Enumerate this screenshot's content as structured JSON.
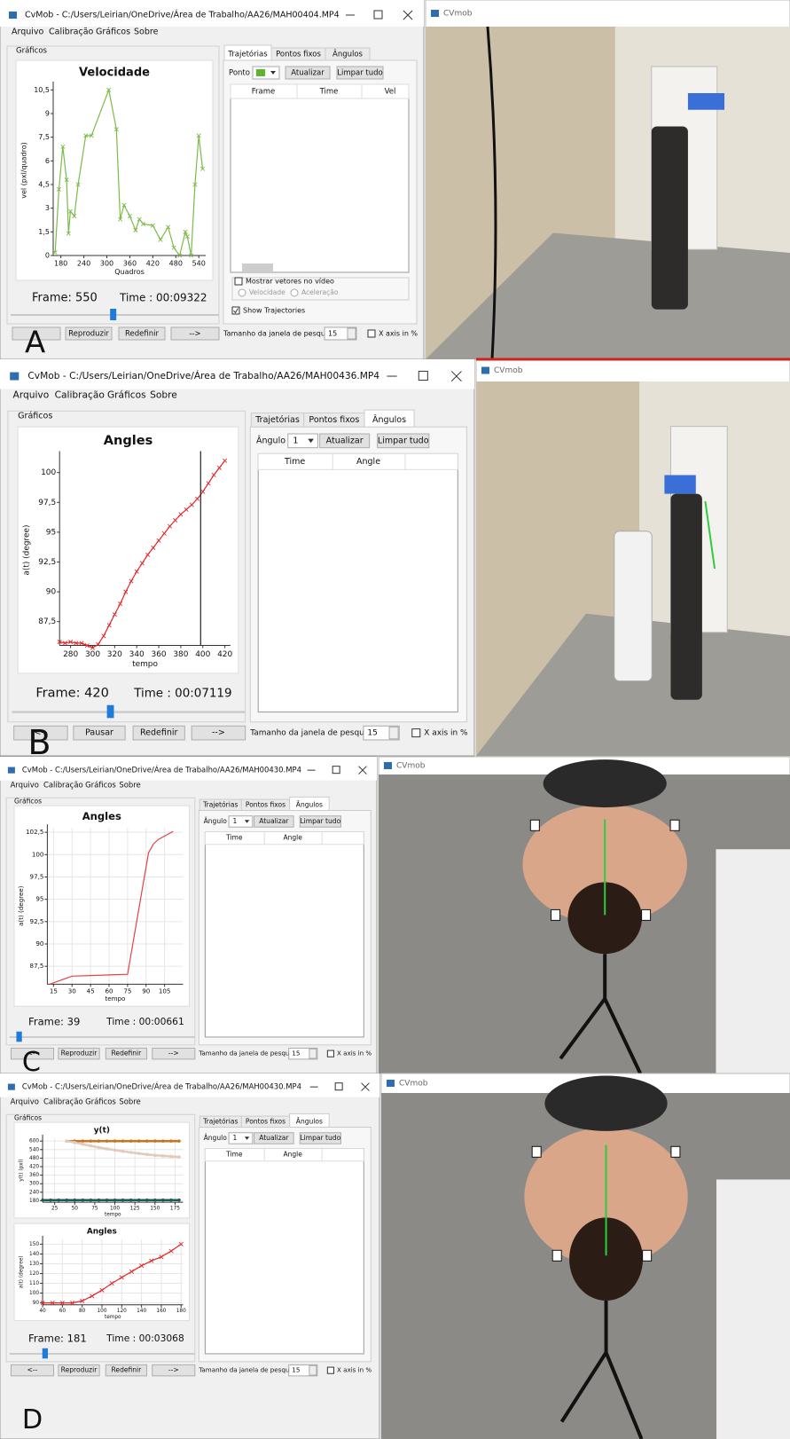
{
  "chart_data": [
    {
      "type": "line",
      "title": "Velocidade",
      "x_label": "Quadros",
      "y_label": "vel (pxl/quadro)",
      "color": "#7cbb4a",
      "marker": "x",
      "grid": false,
      "x": [
        165,
        175,
        185,
        195,
        200,
        205,
        215,
        225,
        245,
        260,
        305,
        325,
        335,
        345,
        360,
        375,
        385,
        395,
        420,
        440,
        460,
        475,
        490,
        505,
        510,
        520,
        530,
        540,
        550
      ],
      "series": [
        {
          "color": "#7cbb4a",
          "values": [
            0.2,
            4.2,
            6.9,
            4.8,
            1.4,
            2.8,
            2.5,
            4.5,
            7.6,
            7.6,
            10.5,
            8,
            2.3,
            3.2,
            2.5,
            1.6,
            2.3,
            2,
            1.9,
            1,
            1.8,
            0.5,
            0,
            1.5,
            1.2,
            0,
            4.5,
            7.6,
            5.5
          ]
        }
      ],
      "xlim": [
        160,
        558
      ],
      "xticks": [
        180,
        240,
        300,
        360,
        420,
        480,
        540
      ],
      "ylim": [
        0,
        10.8
      ],
      "yticks": [
        0,
        {
          "value": 1.5,
          "label": "1,5"
        },
        3,
        {
          "value": 4.5,
          "label": "4,5"
        },
        6,
        {
          "value": 7.5,
          "label": "7,5"
        },
        9,
        {
          "value": 10.5,
          "label": "10,5"
        }
      ]
    },
    {
      "type": "line",
      "title": "Angles",
      "x_label": "tempo",
      "y_label": "a(t) (degree)",
      "marker": "x",
      "grid": false,
      "cursor_x": 398,
      "x": [
        270,
        275,
        280,
        285,
        290,
        295,
        300,
        305,
        310,
        315,
        320,
        325,
        330,
        335,
        340,
        345,
        350,
        355,
        360,
        365,
        370,
        375,
        380,
        385,
        390,
        395,
        400,
        405,
        410,
        415,
        420
      ],
      "series": [
        {
          "color": "#e5262a",
          "values": [
            85.8,
            85.7,
            85.8,
            85.7,
            85.7,
            85.5,
            85.3,
            85.6,
            86.3,
            87.2,
            88.1,
            89.0,
            90.0,
            90.9,
            91.7,
            92.4,
            93.1,
            93.7,
            94.3,
            94.9,
            95.5,
            96.0,
            96.5,
            96.9,
            97.3,
            97.8,
            98.4,
            99.1,
            99.8,
            100.4,
            101.0
          ]
        }
      ],
      "xlim": [
        270,
        425
      ],
      "xticks": [
        280,
        300,
        320,
        340,
        360,
        380,
        400,
        420
      ],
      "ylim": [
        85.5,
        101.5
      ],
      "yticks": [
        {
          "value": 87.5,
          "label": "87,5"
        },
        90,
        {
          "value": 92.5,
          "label": "92,5"
        },
        95,
        {
          "value": 97.5,
          "label": "97,5"
        },
        100
      ]
    },
    {
      "type": "line",
      "title": "Angles",
      "x_label": "tempo",
      "y_label": "a(t) (degree)",
      "marker": "none",
      "grid": true,
      "x": [
        12,
        30,
        75,
        92,
        96,
        100,
        112
      ],
      "series": [
        {
          "color": "#e84040",
          "values": [
            85.5,
            86.4,
            86.6,
            100.2,
            101.2,
            101.7,
            102.6
          ]
        }
      ],
      "xlim": [
        10,
        120
      ],
      "xticks": [
        15,
        30,
        45,
        60,
        75,
        90,
        105
      ],
      "ylim": [
        85.5,
        103
      ],
      "yticks": [
        {
          "value": 87.5,
          "label": "87,5"
        },
        90,
        {
          "value": 92.5,
          "label": "92,5"
        },
        95,
        {
          "value": 97.5,
          "label": "97,5"
        },
        100,
        {
          "value": 102.5,
          "label": "102,5"
        }
      ]
    },
    {
      "type": "line",
      "title": "y(t)",
      "x_label": "tempo",
      "y_label": "y(t) (pxl)",
      "marker": "dot",
      "grid": true,
      "x": [
        10,
        20,
        30,
        40,
        50,
        60,
        70,
        80,
        90,
        100,
        110,
        120,
        130,
        140,
        150,
        160,
        170,
        180
      ],
      "series": [
        {
          "color": "#c8741e",
          "values": [
            null,
            null,
            null,
            600,
            600,
            600,
            600,
            600,
            600,
            600,
            600,
            600,
            600,
            600,
            600,
            600,
            600,
            600
          ]
        },
        {
          "color": "#e3c9b9",
          "values": [
            null,
            null,
            null,
            600,
            590,
            578,
            566,
            555,
            545,
            536,
            528,
            520,
            513,
            506,
            500,
            496,
            492,
            488
          ]
        },
        {
          "color": "#1d5a5a",
          "values": [
            185,
            185,
            185,
            185,
            185,
            185,
            185,
            185,
            185,
            185,
            185,
            185,
            185,
            185,
            185,
            185,
            185,
            185
          ]
        }
      ],
      "xlim": [
        10,
        185
      ],
      "xticks": [
        25,
        50,
        75,
        100,
        125,
        150,
        175
      ],
      "ylim": [
        170,
        620
      ],
      "yticks": [
        180,
        240,
        300,
        360,
        420,
        480,
        540,
        600
      ]
    },
    {
      "type": "line",
      "title": "Angles",
      "x_label": "tempo",
      "y_label": "a(t) (degree)",
      "marker": "x",
      "grid": true,
      "x": [
        40,
        50,
        60,
        70,
        80,
        90,
        100,
        110,
        120,
        130,
        140,
        150,
        160,
        170,
        180
      ],
      "series": [
        {
          "color": "#e5262a",
          "values": [
            90,
            90,
            90,
            90,
            92,
            97,
            103,
            110,
            116,
            122,
            128,
            133,
            137,
            143,
            150
          ]
        }
      ],
      "xlim": [
        40,
        182
      ],
      "xticks": [
        40,
        60,
        80,
        100,
        120,
        140,
        160,
        180
      ],
      "ylim": [
        88,
        155
      ],
      "yticks": [
        90,
        100,
        110,
        120,
        130,
        140,
        150
      ]
    }
  ],
  "panels": [
    {
      "letter": "A",
      "window_title": "CvMob - C:/Users/Leirian/OneDrive/Área de Trabalho/AA26/MAH00404.MP4",
      "menu": [
        "Arquivo",
        "Calibração",
        "Gráficos",
        "Sobre"
      ],
      "group_title": "Gráficos",
      "tabs": [
        "Trajetórias",
        "Pontos fixos",
        "Ângulos"
      ],
      "active_tab": 0,
      "selector_label": "Ponto",
      "selector_color": "#5bb52f",
      "tab_buttons": [
        "Atualizar",
        "Limpar tudo"
      ],
      "table_headers": [
        "Frame",
        "Time",
        "Vel"
      ],
      "options": [
        "Mostrar vetores no vídeo",
        "Velocidade",
        "Aceleração",
        "Show Trajectories"
      ],
      "frame": "Frame: 550",
      "time": "Time : 00:09322",
      "buttons": [
        "Reproduzir",
        "Redefinir",
        "-->"
      ],
      "search_label": "Tamanho da janela de pesquisa",
      "search_size": 15,
      "x_axis_option": "X axis in %",
      "video_title": "CVmob"
    },
    {
      "letter": "B",
      "window_title": "CvMob - C:/Users/Leirian/OneDrive/Área de Trabalho/AA26/MAH00436.MP4",
      "menu": [
        "Arquivo",
        "Calibração",
        "Gráficos",
        "Sobre"
      ],
      "group_title": "Gráficos",
      "tabs": [
        "Trajetórias",
        "Pontos fixos",
        "Ângulos"
      ],
      "active_tab": 2,
      "selector_label": "Ângulo",
      "selector_value": 1,
      "tab_buttons": [
        "Atualizar",
        "Limpar tudo"
      ],
      "table_headers": [
        "Time",
        "Angle"
      ],
      "frame": "Frame: 420",
      "time": "Time : 00:07119",
      "buttons": [
        "<--",
        "Pausar",
        "Redefinir",
        "-->"
      ],
      "search_label": "Tamanho da janela de pesquisa",
      "search_size": 15,
      "x_axis_option": "X axis in %",
      "video_title": "CVmob"
    },
    {
      "letter": "C",
      "window_title": "CvMob - C:/Users/Leirian/OneDrive/Área de Trabalho/AA26/MAH00430.MP4",
      "menu": [
        "Arquivo",
        "Calibração",
        "Gráficos",
        "Sobre"
      ],
      "group_title": "Gráficos",
      "tabs": [
        "Trajetórias",
        "Pontos fixos",
        "Ângulos"
      ],
      "active_tab": 2,
      "selector_label": "Ângulo",
      "selector_value": 1,
      "tab_buttons": [
        "Atualizar",
        "Limpar tudo"
      ],
      "table_headers": [
        "Time",
        "Angle"
      ],
      "frame": "Frame: 39",
      "time": "Time : 00:00661",
      "buttons": [
        "<--",
        "Reproduzir",
        "Redefinir",
        "-->"
      ],
      "search_label": "Tamanho da janela de pesquisa",
      "search_size": 15,
      "x_axis_option": "X axis in %",
      "video_title": "CVmob"
    },
    {
      "letter": "D",
      "window_title": "CvMob - C:/Users/Leirian/OneDrive/Área de Trabalho/AA26/MAH00430.MP4",
      "menu": [
        "Arquivo",
        "Calibração",
        "Gráficos",
        "Sobre"
      ],
      "group_title": "Gráficos",
      "tabs": [
        "Trajetórias",
        "Pontos fixos",
        "Ângulos"
      ],
      "active_tab": 2,
      "selector_label": "Ângulo",
      "selector_value": 1,
      "tab_buttons": [
        "Atualizar",
        "Limpar tudo"
      ],
      "table_headers": [
        "Time",
        "Angle"
      ],
      "frame": "Frame: 181",
      "time": "Time : 00:03068",
      "buttons": [
        "<--",
        "Reproduzir",
        "Redefinir",
        "-->"
      ],
      "search_label": "Tamanho da janela de pesquisa",
      "search_size": 15,
      "x_axis_option": "X axis in %",
      "video_title": "CVmob"
    }
  ]
}
